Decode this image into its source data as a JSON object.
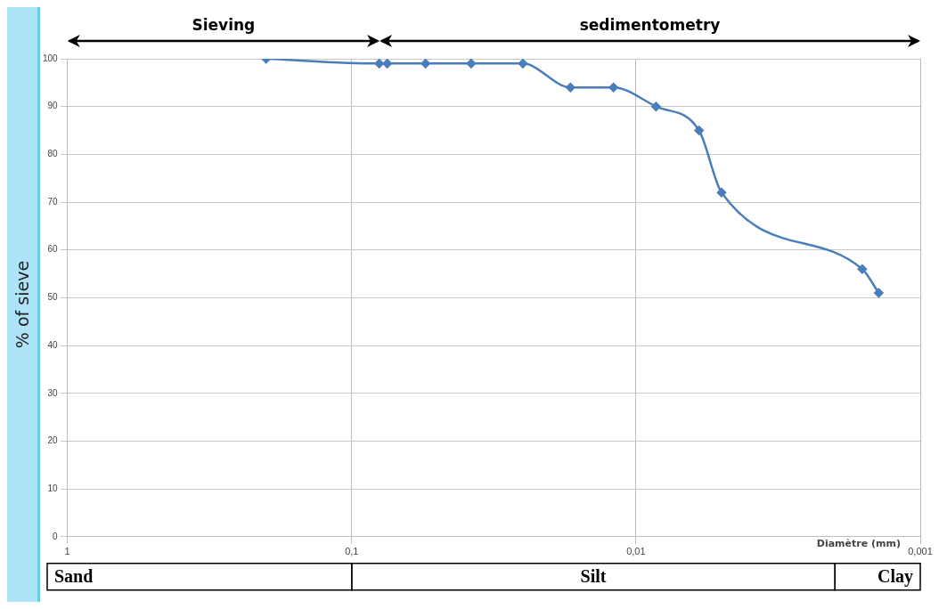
{
  "chart_data": {
    "type": "line",
    "ylabel": "% of sieve",
    "xlabel": "Diamètre (mm)",
    "x": [
      0.2,
      0.08,
      0.075,
      0.055,
      0.038,
      0.025,
      0.017,
      0.012,
      0.0085,
      0.006,
      0.005,
      0.0016,
      0.0014
    ],
    "series": [
      {
        "color": "#4a7ebb",
        "values": [
          100,
          99,
          99,
          99,
          99,
          99,
          94,
          94,
          90,
          85,
          72,
          56,
          51
        ]
      }
    ],
    "log": "x",
    "xlim": [
      1,
      0.001
    ],
    "xticks": [
      1,
      {
        "value": 0.1,
        "label": "0,1"
      },
      {
        "value": 0.01,
        "label": "0,01"
      },
      {
        "value": 0.001,
        "label": "0,001"
      }
    ],
    "ylim": [
      0,
      100
    ],
    "yticks": [
      0,
      10,
      20,
      30,
      40,
      50,
      60,
      70,
      80,
      90,
      100
    ],
    "grid": true,
    "marker": "diamond",
    "line_style": "solid",
    "legend": false,
    "annotations": [
      "Sieving",
      "sedimentometry",
      "Sand",
      "Silt",
      "Clay"
    ]
  }
}
